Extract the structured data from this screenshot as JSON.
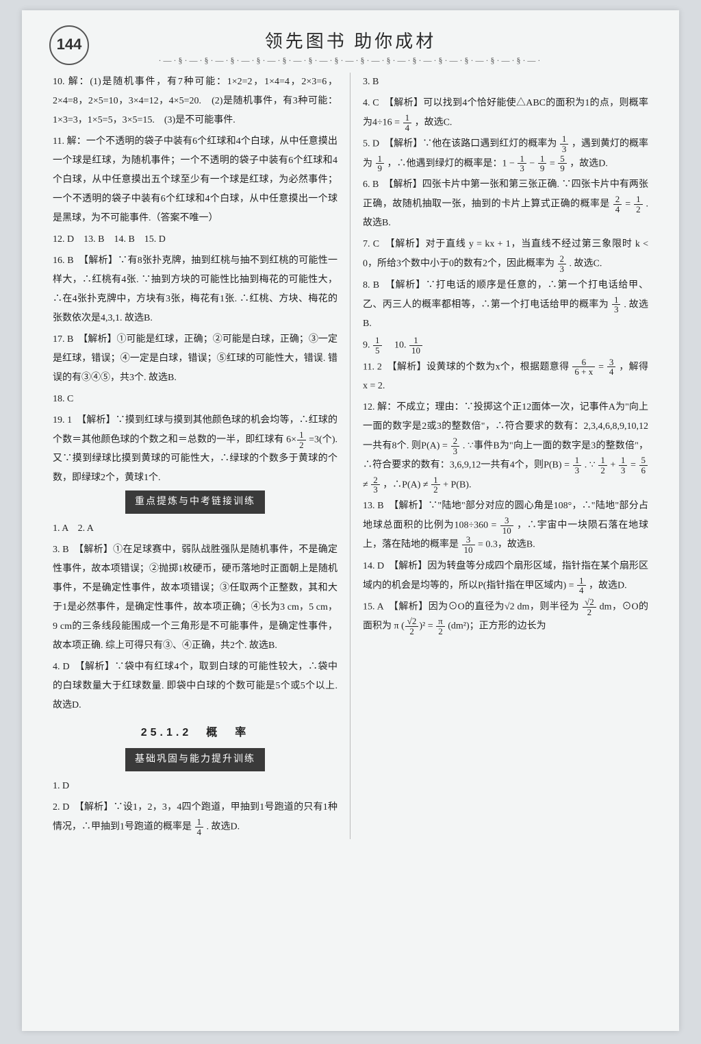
{
  "page_number": "144",
  "header_title": "领先图书 助你成材",
  "ornament": "·—·§·—·§·—·§·—·§·—·§·—·§·—·§·—·§·—·§·—·§·—·§·—·§·—·§·—·§·—·",
  "section_25_1_2": "25.1.2　概　率",
  "box_zhongdian": "重点提炼与中考链接训练",
  "box_jichu": "基础巩固与能力提升训练",
  "left": {
    "q10": "10. 解：(1)是随机事件，有7种可能：1×2=2，1×4=4，2×3=6，2×4=8，2×5=10，3×4=12，4×5=20.　(2)是随机事件，有3种可能：1×3=3，1×5=5，3×5=15.　(3)是不可能事件.",
    "q11": "11. 解：一个不透明的袋子中装有6个红球和4个白球，从中任意摸出一个球是红球，为随机事件；一个不透明的袋子中装有6个红球和4个白球，从中任意摸出五个球至少有一个球是红球，为必然事件；一个不透明的袋子中装有6个红球和4个白球，从中任意摸出一个球是黑球，为不可能事件.（答案不唯一）",
    "q12_15": "12. D　13. B　14. B　15. D",
    "q16": "16. B　【解析】∵有8张扑克牌，抽到红桃与抽不到红桃的可能性一样大，∴红桃有4张. ∵抽到方块的可能性比抽到梅花的可能性大，∴在4张扑克牌中，方块有3张，梅花有1张. ∴红桃、方块、梅花的张数依次是4,3,1. 故选B.",
    "q17": "17. B　【解析】①可能是红球，正确；②可能是白球，正确；③一定是红球，错误；④一定是白球，错误；⑤红球的可能性大，错误. 错误的有③④⑤，共3个. 故选B.",
    "q18": "18. C",
    "q19a": "19. 1　【解析】∵摸到红球与摸到其他颜色球的机会均等，∴红球的个数＝其他颜色球的个数之和＝总数的一半，即红球有",
    "q19b": "=3(个). 又∵摸到绿球比摸到黄球的可能性大，∴绿球的个数多于黄球的个数，即绿球2个，黄球1个.",
    "z1_2": "1. A　2. A",
    "z3": "3. B　【解析】①在足球赛中，弱队战胜强队是随机事件，不是确定性事件，故本项错误；②抛掷1枚硬币，硬币落地时正面朝上是随机事件，不是确定性事件，故本项错误；③任取两个正整数，其和大于1是必然事件，是确定性事件，故本项正确；④长为3 cm，5 cm，9 cm的三条线段能围成一个三角形是不可能事件，是确定性事件，故本项正确. 综上可得只有③、④正确，共2个. 故选B.",
    "z4": "4. D　【解析】∵袋中有红球4个，取到白球的可能性较大，∴袋中的白球数量大于红球数量. 即袋中白球的个数可能是5个或5个以上. 故选D.",
    "j1": "1. D",
    "j2a": "2. D　【解析】∵设1，2，3，4四个跑道，甲抽到1号跑道的只有1种情况，∴甲抽到1号跑道的概率是",
    "j2b": ". 故选D."
  },
  "right": {
    "r3": "3. B",
    "r4a": "4. C　【解析】可以找到4个恰好能使△ABC的面积为1的点，则概率为4÷16 =",
    "r4b": "，故选C.",
    "r5a": "5. D　【解析】∵他在该路口遇到红灯的概率为",
    "r5b": "，遇到黄灯的概率为",
    "r5c": "，∴他遇到绿灯的概率是：1 −",
    "r5d": "，故选D.",
    "r6a": "6. B　【解析】四张卡片中第一张和第三张正确. ∵四张卡片中有两张正确，故随机抽取一张，抽到的卡片上算式正确的概率是",
    "r6b": ". 故选B.",
    "r7a": "7. C　【解析】对于直线 y = kx + 1，当直线不经过第三象限时 k < 0，所给3个数中小于0的数有2个，因此概率为",
    "r7b": ". 故选C.",
    "r8a": "8. B　【解析】∵打电话的顺序是任意的，∴第一个打电话给甲、乙、丙三人的概率都相等，∴第一个打电话给甲的概率为",
    "r8b": ". 故选B.",
    "r9": "9. ",
    "r10": "　10. ",
    "r11a": "11. 2　【解析】设黄球的个数为x个，根据题意得",
    "r11b": "，解得 x = 2.",
    "r12a": "12. 解：不成立；理由：∵投掷这个正12面体一次，记事件A为\"向上一面的数字是2或3的整数倍\"，∴符合要求的数有：2,3,4,6,8,9,10,12一共有8个. 则P(A) =",
    "r12b": ". ∵事件B为\"向上一面的数字是3的整数倍\"，∴符合要求的数有：3,6,9,12一共有4个，则P(B) =",
    "r12c": "，∴P(A) ≠",
    "r12d": "+ P(B).",
    "r13a": "13. B　【解析】∵\"陆地\"部分对应的圆心角是108°，∴\"陆地\"部分占地球总面积的比例为108÷360 =",
    "r13b": "，∴宇宙中一块陨石落在地球上，落在陆地的概率是",
    "r13c": "= 0.3，故选B.",
    "r14a": "14. D　【解析】因为转盘等分成四个扇形区域，指针指在某个扇形区域内的机会是均等的，所以P(指针指在甲区域内) =",
    "r14b": "，故选D.",
    "r15a": "15. A　【解析】因为⊙O的直径为√2 dm，则半径为",
    "r15b": " dm，⊙O的面积为 π",
    "r15c": "(dm²)；正方形的边长为"
  },
  "fracs": {
    "f1_4": {
      "n": "1",
      "d": "4"
    },
    "f1_3": {
      "n": "1",
      "d": "3"
    },
    "f1_9": {
      "n": "1",
      "d": "9"
    },
    "f5_9": {
      "n": "5",
      "d": "9"
    },
    "f2_4": {
      "n": "2",
      "d": "4"
    },
    "f1_2": {
      "n": "1",
      "d": "2"
    },
    "f2_3": {
      "n": "2",
      "d": "3"
    },
    "f1_5": {
      "n": "1",
      "d": "5"
    },
    "f1_10": {
      "n": "1",
      "d": "10"
    },
    "f6_6x": {
      "n": "6",
      "d": "6 + x"
    },
    "f3_4": {
      "n": "3",
      "d": "4"
    },
    "f5_6": {
      "n": "5",
      "d": "6"
    },
    "f3_10": {
      "n": "3",
      "d": "10"
    },
    "fr2_2": {
      "n": "√2",
      "d": "2"
    },
    "fpi_2": {
      "n": "π",
      "d": "2"
    },
    "f6_half": {
      "n": "1",
      "d": "2"
    }
  }
}
